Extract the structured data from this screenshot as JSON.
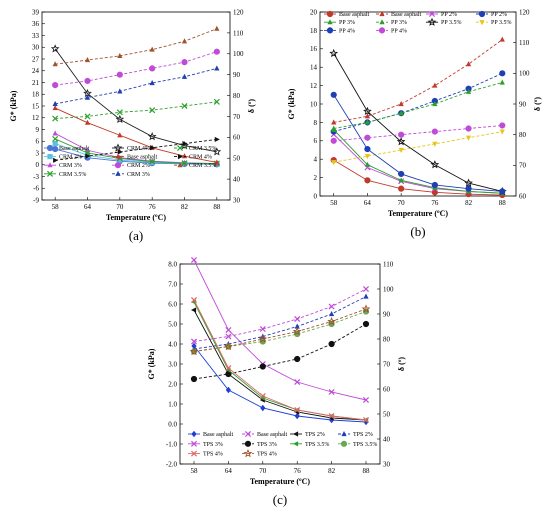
{
  "chart_data": [
    {
      "type": "line",
      "panel_label": "(a)",
      "xlabel": "Temperature (ºC)",
      "ylabel": "G* (kPa)",
      "y2label": "δ (º)",
      "x": [
        58,
        64,
        70,
        76,
        82,
        88
      ],
      "x_ticks": [
        "58",
        "64",
        "70",
        "76",
        "82",
        "88"
      ],
      "ylim": [
        -9,
        39
      ],
      "y_ticks": [
        "-9",
        "-6",
        "-3",
        "0",
        "3",
        "6",
        "9",
        "12",
        "15",
        "18",
        "21",
        "24",
        "27",
        "30",
        "33",
        "36",
        "39"
      ],
      "y2lim": [
        30,
        120
      ],
      "y2_ticks": [
        "30",
        "40",
        "50",
        "60",
        "70",
        "80",
        "90",
        "100",
        "110",
        "120"
      ],
      "legend_columns": 3,
      "series": [
        {
          "name": "Base asphalt",
          "axis": "left",
          "color": "#4a73d8",
          "marker": "circle",
          "dash": "solid",
          "values": [
            4.0,
            1.8,
            0.9,
            0.4,
            0.2,
            0.1
          ]
        },
        {
          "name": "CRM 2%",
          "axis": "left",
          "color": "#5bc0de",
          "marker": "square",
          "dash": "solid",
          "values": [
            5.4,
            2.4,
            1.2,
            0.6,
            0.3,
            0.2
          ]
        },
        {
          "name": "CRM 3%",
          "axis": "left",
          "color": "#c04bd8",
          "marker": "triangle",
          "dash": "solid",
          "values": [
            8.0,
            3.7,
            1.8,
            0.9,
            0.5,
            0.3
          ]
        },
        {
          "name": "CRM 3.5%",
          "axis": "left",
          "color": "#2ca02c",
          "marker": "x",
          "dash": "solid",
          "values": [
            6.6,
            3.0,
            1.6,
            0.8,
            0.4,
            0.3
          ]
        },
        {
          "name": "CRM 4%",
          "axis": "left",
          "color": "#222222",
          "marker": "star",
          "dash": "solid",
          "values": [
            29.6,
            18.2,
            11.6,
            7.2,
            4.9,
            3.3
          ]
        },
        {
          "name": "Base asphalt",
          "axis": "right",
          "color": "#c0392b",
          "marker": "triangle",
          "dash": "solid",
          "values": [
            74,
            67,
            61,
            55,
            51,
            48
          ]
        },
        {
          "name": "CRM 2%",
          "axis": "right",
          "color": "#c04bd8",
          "marker": "circle",
          "dash": "dashed",
          "values": [
            85,
            87,
            90,
            93,
            96,
            101
          ]
        },
        {
          "name": "CRM 3%",
          "axis": "right",
          "color": "#1f3fb4",
          "marker": "triangle",
          "dash": "dashed",
          "values": [
            76,
            79,
            82,
            86,
            89,
            93
          ]
        },
        {
          "name": "CRM 3.5%",
          "axis": "right",
          "color": "#2ca02c",
          "marker": "x",
          "dash": "dashed",
          "values": [
            69,
            70,
            72,
            73,
            75,
            77
          ]
        },
        {
          "name": "CRM 4%",
          "axis": "right",
          "color": "#111111",
          "marker": "triangle-right",
          "dash": "dashed",
          "values": [
            49,
            51,
            53,
            55,
            57,
            59
          ]
        },
        {
          "name": "CRM 3.5%",
          "axis": "right",
          "color": "#a0522d",
          "marker": "triangle",
          "dash": "dashed",
          "values": [
            95,
            97,
            99,
            102,
            106,
            112
          ]
        }
      ]
    },
    {
      "type": "line",
      "panel_label": "(b)",
      "xlabel": "Temperature (ºC)",
      "ylabel": "G* (kPa)",
      "y2label": "δ (º)",
      "x": [
        58,
        64,
        70,
        76,
        82,
        88
      ],
      "x_ticks": [
        "58",
        "64",
        "70",
        "76",
        "82",
        "88"
      ],
      "ylim": [
        0,
        20
      ],
      "y_ticks": [
        "0",
        "2",
        "4",
        "6",
        "8",
        "10",
        "12",
        "14",
        "16",
        "18",
        "20"
      ],
      "y2lim": [
        60,
        120
      ],
      "y2_ticks": [
        "60",
        "70",
        "80",
        "90",
        "100",
        "110",
        "120"
      ],
      "legend_columns": 4,
      "series": [
        {
          "name": "Base asphalt",
          "axis": "left",
          "color": "#c0392b",
          "marker": "circle",
          "dash": "solid",
          "values": [
            3.9,
            1.7,
            0.8,
            0.4,
            0.2,
            0.1
          ]
        },
        {
          "name": "Base asphalt",
          "axis": "right",
          "color": "#c0392b",
          "marker": "triangle",
          "dash": "dashed",
          "values": [
            84,
            86,
            90,
            96,
            103,
            111
          ]
        },
        {
          "name": "PP 2%",
          "axis": "left",
          "color": "#c04bd8",
          "marker": "x",
          "dash": "solid",
          "values": [
            6.7,
            3.1,
            1.6,
            0.8,
            0.5,
            0.3
          ]
        },
        {
          "name": "PP 2%",
          "axis": "right",
          "color": "#1f3fb4",
          "marker": "circle",
          "dash": "dashed",
          "values": [
            81,
            84,
            87,
            91,
            95,
            100
          ]
        },
        {
          "name": "PP 3%",
          "axis": "left",
          "color": "#2ca02c",
          "marker": "triangle",
          "dash": "solid",
          "values": [
            7.2,
            3.4,
            1.7,
            0.9,
            0.5,
            0.3
          ]
        },
        {
          "name": "PP 3%",
          "axis": "right",
          "color": "#2ca02c",
          "marker": "triangle",
          "dash": "dashed",
          "values": [
            82,
            84,
            87,
            90,
            94,
            97
          ]
        },
        {
          "name": "PP 3.5%",
          "axis": "left",
          "color": "#111111",
          "marker": "star",
          "dash": "solid",
          "values": [
            15.5,
            9.2,
            5.9,
            3.4,
            1.4,
            0.5
          ]
        },
        {
          "name": "PP 3.5%",
          "axis": "right",
          "color": "#e6c619",
          "marker": "triangle-down",
          "dash": "dashed",
          "values": [
            71,
            73,
            75,
            77,
            79,
            81
          ]
        },
        {
          "name": "PP 4%",
          "axis": "left",
          "color": "#1f3fb4",
          "marker": "circle",
          "dash": "solid",
          "values": [
            11.0,
            5.1,
            2.4,
            1.2,
            0.8,
            0.5
          ]
        },
        {
          "name": "PP 4%",
          "axis": "right",
          "color": "#c04bd8",
          "marker": "circle",
          "dash": "dashed",
          "values": [
            78,
            79,
            80,
            81,
            82,
            83
          ]
        }
      ]
    },
    {
      "type": "line",
      "panel_label": "(c)",
      "xlabel": "Temperature (ºC)",
      "ylabel": "G* (kPa)",
      "y2label": "δ (º)",
      "x": [
        58,
        64,
        70,
        76,
        82,
        88
      ],
      "x_ticks": [
        "58",
        "64",
        "70",
        "76",
        "82",
        "88"
      ],
      "ylim": [
        -2.0,
        8.0
      ],
      "y_ticks": [
        "-2.0",
        "-1.0",
        "0.0",
        "1.0",
        "2.0",
        "3.0",
        "4.0",
        "5.0",
        "6.0",
        "7.0",
        "8.0"
      ],
      "y2lim": [
        30,
        110
      ],
      "y2_ticks": [
        "30",
        "40",
        "50",
        "60",
        "70",
        "80",
        "90",
        "100",
        "110"
      ],
      "legend_columns": 4,
      "series": [
        {
          "name": "Base asphalt",
          "axis": "left",
          "color": "#1f3fd4",
          "marker": "diamond",
          "dash": "solid",
          "values": [
            3.9,
            1.7,
            0.8,
            0.4,
            0.2,
            0.1
          ]
        },
        {
          "name": "Base asphalt",
          "axis": "right",
          "color": "#c04bd8",
          "marker": "x",
          "dash": "dashed",
          "values": [
            79,
            81,
            84,
            88,
            93,
            100
          ]
        },
        {
          "name": "TPS 2%",
          "axis": "left",
          "color": "#111111",
          "marker": "triangle-left",
          "dash": "solid",
          "values": [
            5.7,
            2.5,
            1.2,
            0.6,
            0.3,
            0.2
          ]
        },
        {
          "name": "TPS 2%",
          "axis": "right",
          "color": "#1f3fb4",
          "marker": "triangle",
          "dash": "dashed",
          "values": [
            76,
            78,
            81,
            85,
            90,
            97
          ]
        },
        {
          "name": "TPS 3%",
          "axis": "left",
          "color": "#c04bd8",
          "marker": "x",
          "dash": "solid",
          "values": [
            8.2,
            4.7,
            3.0,
            2.1,
            1.6,
            1.2
          ]
        },
        {
          "name": "TPS 3%",
          "axis": "right",
          "color": "#111111",
          "marker": "circle",
          "dash": "dashed",
          "values": [
            64,
            66,
            69,
            72,
            78,
            86
          ]
        },
        {
          "name": "TPS 3.5%",
          "axis": "left",
          "color": "#2ca02c",
          "marker": "triangle-left",
          "dash": "solid",
          "values": [
            6.1,
            2.7,
            1.3,
            0.7,
            0.4,
            0.2
          ]
        },
        {
          "name": "TPS 3.5%",
          "axis": "right",
          "color": "#6aa84f",
          "marker": "circle",
          "dash": "dashed",
          "values": [
            75,
            77,
            79,
            82,
            86,
            91
          ]
        },
        {
          "name": "TPS 4%",
          "axis": "left",
          "color": "#e06666",
          "marker": "x",
          "dash": "solid",
          "values": [
            6.2,
            2.8,
            1.4,
            0.7,
            0.4,
            0.2
          ]
        },
        {
          "name": "TPS 4%",
          "axis": "right",
          "color": "#a0522d",
          "marker": "star",
          "dash": "dashed",
          "values": [
            75,
            77,
            80,
            83,
            87,
            92
          ]
        }
      ]
    }
  ]
}
